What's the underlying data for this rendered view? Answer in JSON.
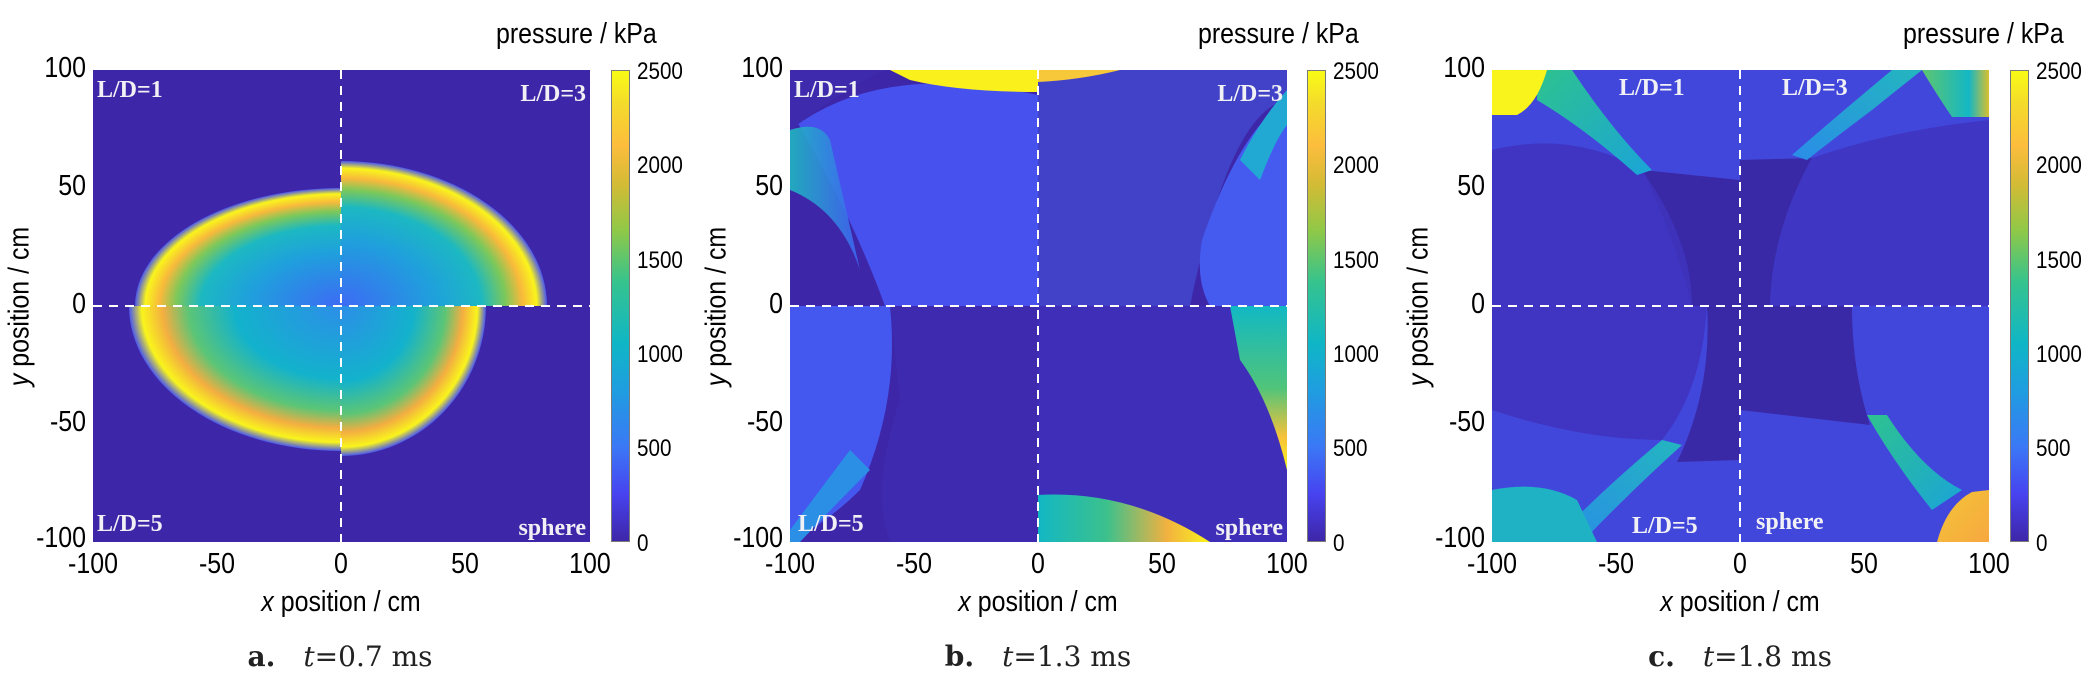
{
  "colorbar": {
    "title": "pressure / kPa",
    "ticks": [
      "0",
      "500",
      "1000",
      "1500",
      "2000",
      "2500"
    ],
    "range": [
      0,
      2500
    ],
    "colormap": "parula"
  },
  "axes": {
    "xlabel_var": "x",
    "xlabel_rest": " position / cm",
    "ylabel_var": "y",
    "ylabel_rest": " position / cm",
    "xticks": [
      "-100",
      "-50",
      "0",
      "50",
      "100"
    ],
    "yticks": [
      "100",
      "50",
      "0",
      "-50",
      "-100"
    ]
  },
  "quadrants": {
    "top_left": "L/D=1",
    "top_right": "L/D=3",
    "bottom_left": "L/D=5",
    "bottom_right": "sphere"
  },
  "panels": [
    {
      "label": "a.",
      "tvar": "t",
      "time": "=0.7 ms"
    },
    {
      "label": "b.",
      "tvar": "t",
      "time": "=1.3 ms"
    },
    {
      "label": "c.",
      "tvar": "t",
      "time": "=1.8 ms"
    }
  ],
  "chart_data": [
    {
      "type": "heatmap",
      "title": "a. t=0.7 ms",
      "xlabel": "x position / cm",
      "ylabel": "y position / cm",
      "xlim": [
        -100,
        100
      ],
      "ylim": [
        -100,
        100
      ],
      "colorbar_label": "pressure / kPa",
      "clim": [
        0,
        2500
      ],
      "quadrants": [
        "L/D=1",
        "L/D=3",
        "L/D=5",
        "sphere"
      ],
      "description": "Blast wave fronts of four charge shapes (one per quadrant); front radius ~80-85 cm horizontally, ~45-55 cm vertically; peak front pressure ≥2500 kPa, interior ~800-1300 kPa, ambient ~0 kPa"
    },
    {
      "type": "heatmap",
      "title": "b. t=1.3 ms",
      "xlabel": "x position / cm",
      "ylabel": "y position / cm",
      "xlim": [
        -100,
        100
      ],
      "ylim": [
        -100,
        100
      ],
      "colorbar_label": "pressure / kPa",
      "clim": [
        0,
        2500
      ],
      "quadrants": [
        "L/D=1",
        "L/D=3",
        "L/D=5",
        "sphere"
      ],
      "description": "Reflected waves from walls; high pressure (~2500 kPa) along top/bottom walls near x=-40..0 and at right wall near y=-50..-80; interior ~200-400 kPa"
    },
    {
      "type": "heatmap",
      "title": "c. t=1.8 ms",
      "xlabel": "x position / cm",
      "ylabel": "y position / cm",
      "xlim": [
        -100,
        100
      ],
      "ylim": [
        -100,
        100
      ],
      "colorbar_label": "pressure / kPa",
      "clim": [
        0,
        2500
      ],
      "quadrants": [
        "L/D=1",
        "L/D=3",
        "L/D=5",
        "sphere"
      ],
      "description": "Corner reflections: ~2500 kPa at top-left and bottom-right corners, ~1000-1500 kPa at top-right and bottom-left corners; central region ~100-300 kPa"
    }
  ]
}
